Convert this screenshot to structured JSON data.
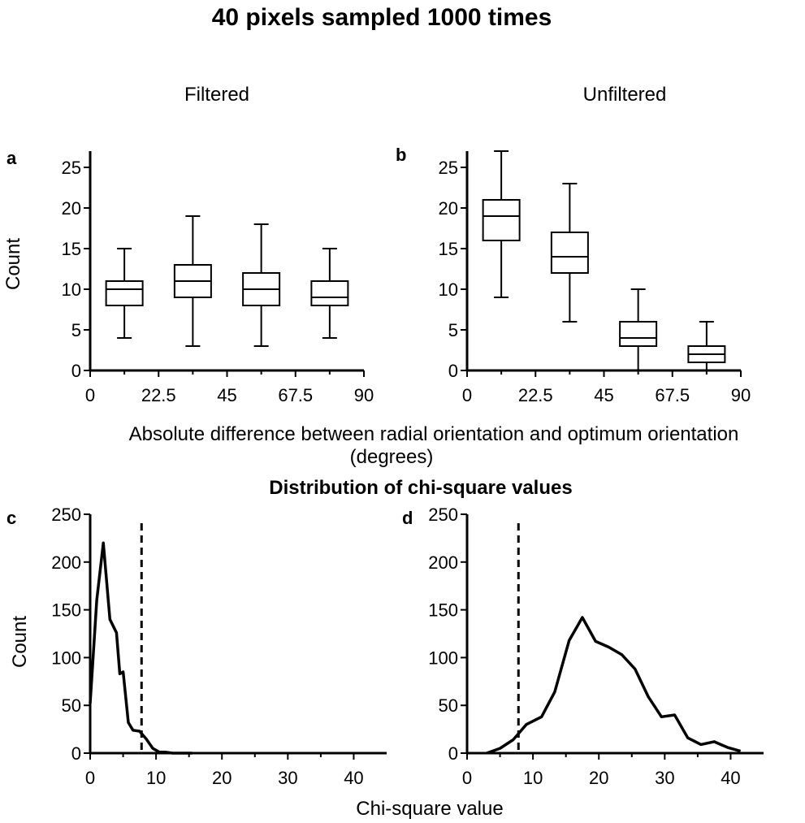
{
  "figure": {
    "title": "40 pixels sampled 1000 times",
    "column_titles": [
      "Filtered",
      "Unfiltered"
    ],
    "top_xlabel_line1": "Absolute difference between radial orientation and optimum orientation",
    "top_xlabel_line2": "(degrees)",
    "bottom_title": "Distribution of chi-square values",
    "bottom_xlabel": "Chi-square value",
    "ylabel": "Count"
  },
  "chart_data": [
    {
      "id": "a",
      "type": "box",
      "panel_label": "a",
      "title": "Filtered",
      "xlim": [
        0,
        90
      ],
      "ylim": [
        0,
        27
      ],
      "xticks": [
        0,
        22.5,
        45,
        67.5,
        90
      ],
      "xtick_labels": [
        "0",
        "22.5",
        "45",
        "67.5",
        "90"
      ],
      "yticks": [
        0,
        5,
        10,
        15,
        20,
        25
      ],
      "ylabel": "Count",
      "xlabel": "Absolute difference between radial orientation and optimum orientation (degrees)",
      "boxes": [
        {
          "x": 11.25,
          "min": 4,
          "q1": 8,
          "median": 10,
          "q3": 11,
          "max": 15
        },
        {
          "x": 33.75,
          "min": 3,
          "q1": 9,
          "median": 11,
          "q3": 13,
          "max": 19
        },
        {
          "x": 56.25,
          "min": 3,
          "q1": 8,
          "median": 10,
          "q3": 12,
          "max": 18
        },
        {
          "x": 78.75,
          "min": 4,
          "q1": 8,
          "median": 9,
          "q3": 11,
          "max": 15
        }
      ]
    },
    {
      "id": "b",
      "type": "box",
      "panel_label": "b",
      "title": "Unfiltered",
      "xlim": [
        0,
        90
      ],
      "ylim": [
        0,
        27
      ],
      "xticks": [
        0,
        22.5,
        45,
        67.5,
        90
      ],
      "xtick_labels": [
        "0",
        "22.5",
        "45",
        "67.5",
        "90"
      ],
      "yticks": [
        0,
        5,
        10,
        15,
        20,
        25
      ],
      "xlabel": "Absolute difference between radial orientation and optimum orientation (degrees)",
      "boxes": [
        {
          "x": 11.25,
          "min": 9,
          "q1": 16,
          "median": 19,
          "q3": 21,
          "max": 27
        },
        {
          "x": 33.75,
          "min": 6,
          "q1": 12,
          "median": 14,
          "q3": 17,
          "max": 23
        },
        {
          "x": 56.25,
          "min": 0,
          "q1": 3,
          "median": 4,
          "q3": 6,
          "max": 10
        },
        {
          "x": 78.75,
          "min": 0,
          "q1": 1,
          "median": 2,
          "q3": 3,
          "max": 6
        }
      ]
    },
    {
      "id": "c",
      "type": "line",
      "panel_label": "c",
      "title": "Distribution of chi-square values",
      "xlim": [
        0,
        45
      ],
      "ylim": [
        0,
        250
      ],
      "xticks": [
        0,
        10,
        20,
        30,
        40
      ],
      "yticks": [
        0,
        50,
        100,
        150,
        200,
        250
      ],
      "ylabel": "Count",
      "xlabel": "Chi-square value",
      "reference_line_x": 7.8,
      "x": [
        0,
        1,
        2,
        3,
        4,
        4.5,
        5,
        5.8,
        6.5,
        7.5,
        8.5,
        9.5,
        10.5,
        11.5,
        12.5,
        15.5
      ],
      "y": [
        52,
        160,
        220,
        140,
        126,
        83,
        85,
        32,
        24,
        23,
        15,
        5,
        1,
        1,
        0,
        0
      ]
    },
    {
      "id": "d",
      "type": "line",
      "panel_label": "d",
      "title": "Distribution of chi-square values",
      "xlim": [
        0,
        45
      ],
      "ylim": [
        0,
        250
      ],
      "xticks": [
        0,
        10,
        20,
        30,
        40
      ],
      "yticks": [
        0,
        50,
        100,
        150,
        200,
        250
      ],
      "xlabel": "Chi-square value",
      "reference_line_x": 7.8,
      "x": [
        3,
        5,
        7,
        8,
        9,
        11.3,
        13.3,
        15.5,
        17.5,
        19.5,
        21.5,
        23.5,
        25.5,
        27.5,
        29.5,
        31.5,
        33.5,
        35.5,
        37.5,
        39.5,
        41.5
      ],
      "y": [
        0,
        5,
        14,
        22,
        30,
        38,
        64,
        118,
        142,
        117,
        111,
        103,
        88,
        59,
        38,
        40,
        16,
        9,
        12,
        6,
        2
      ]
    }
  ]
}
